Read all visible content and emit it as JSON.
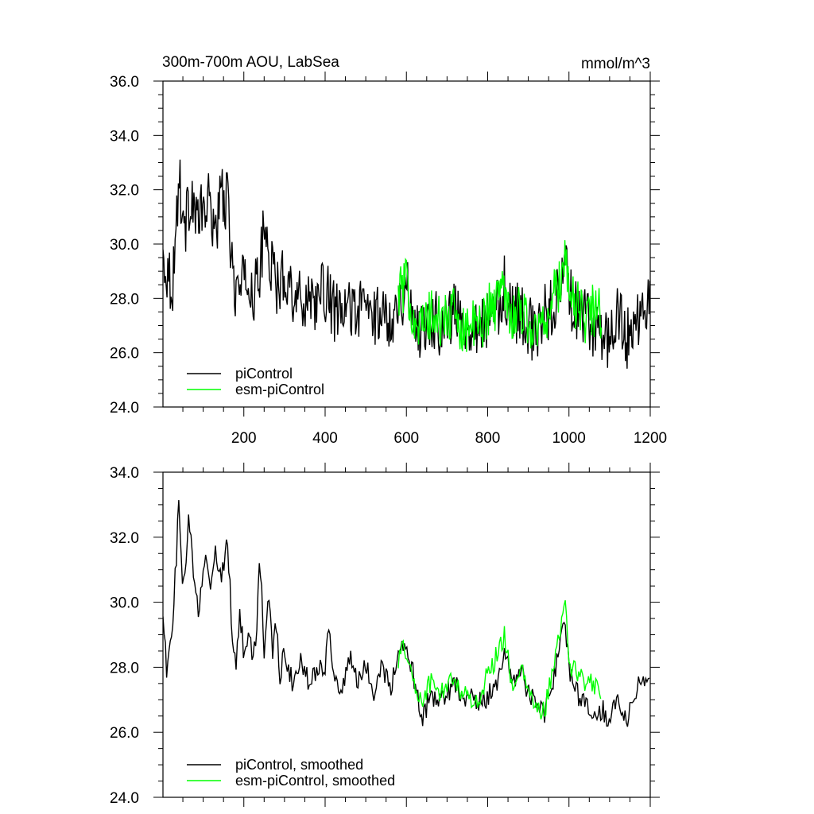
{
  "figure": {
    "title": "300m-700m AOU, LabSea",
    "units": "mmol/m^3"
  },
  "chart_data": [
    {
      "type": "line",
      "title": "300m-700m AOU, LabSea",
      "units": "mmol/m^3",
      "xlabel": "",
      "ylabel": "",
      "xlim": [
        1,
        1200
      ],
      "ylim": [
        24.0,
        36.0
      ],
      "x_ticks": [
        200,
        400,
        600,
        800,
        1000,
        1200
      ],
      "x_tick_labels": [
        "200",
        "400",
        "600",
        "800",
        "1000",
        "1200"
      ],
      "y_ticks": [
        24.0,
        26.0,
        28.0,
        30.0,
        32.0,
        34.0,
        36.0
      ],
      "y_tick_labels": [
        "24.0",
        "26.0",
        "28.0",
        "30.0",
        "32.0",
        "34.0",
        "36.0"
      ],
      "grid": false,
      "legend_position": "bottom-left",
      "series": [
        {
          "name": "piControl",
          "color": "#000000",
          "x": [
            1,
            25,
            40,
            55,
            70,
            85,
            100,
            115,
            130,
            145,
            160,
            175,
            190,
            205,
            220,
            235,
            250,
            265,
            280,
            300,
            320,
            340,
            360,
            380,
            400,
            420,
            440,
            460,
            480,
            500,
            520,
            540,
            560,
            580,
            600,
            620,
            640,
            660,
            680,
            700,
            720,
            740,
            760,
            780,
            800,
            820,
            840,
            860,
            880,
            900,
            920,
            940,
            960,
            980,
            990,
            1000,
            1020,
            1040,
            1060,
            1080,
            1100,
            1120,
            1140,
            1160,
            1180,
            1200
          ],
          "y": [
            29.5,
            28.5,
            32.5,
            30.5,
            32.0,
            30.8,
            31.2,
            31.5,
            30.5,
            31.8,
            31.5,
            28.5,
            28.2,
            28.8,
            28.2,
            28.5,
            30.5,
            29.5,
            28.3,
            29.0,
            28.3,
            27.8,
            28.2,
            27.9,
            28.3,
            27.6,
            27.2,
            27.8,
            27.5,
            27.8,
            27.3,
            27.5,
            27.3,
            27.8,
            28.4,
            27.2,
            26.8,
            27.4,
            27.0,
            27.3,
            27.5,
            27.0,
            27.2,
            27.0,
            27.2,
            27.4,
            28.5,
            27.3,
            27.6,
            27.0,
            26.6,
            27.4,
            27.8,
            28.3,
            29.5,
            28.2,
            27.4,
            27.2,
            26.9,
            26.8,
            26.5,
            27.5,
            26.4,
            27.2,
            27.4,
            28.0
          ]
        },
        {
          "name": "esm-piControl",
          "color": "#00ff00",
          "x": [
            580,
            600,
            620,
            640,
            660,
            680,
            700,
            720,
            740,
            760,
            780,
            800,
            820,
            840,
            860,
            880,
            900,
            920,
            940,
            960,
            980,
            990,
            1000,
            1020,
            1040,
            1060,
            1080
          ],
          "y": [
            28.2,
            28.5,
            27.3,
            26.9,
            27.4,
            27.1,
            27.3,
            27.4,
            26.9,
            27.0,
            26.9,
            27.6,
            27.8,
            28.6,
            27.3,
            27.7,
            27.1,
            26.7,
            27.2,
            28.0,
            28.6,
            29.8,
            28.2,
            27.7,
            27.3,
            27.6,
            27.3
          ]
        }
      ]
    },
    {
      "type": "line",
      "title": "",
      "xlabel": "",
      "ylabel": "",
      "xlim": [
        1,
        1200
      ],
      "ylim": [
        24.0,
        34.0
      ],
      "x_ticks": [
        200,
        400,
        600,
        800,
        1000,
        1200
      ],
      "x_tick_labels": [],
      "y_ticks": [
        24.0,
        26.0,
        28.0,
        30.0,
        32.0,
        34.0
      ],
      "y_tick_labels": [
        "24.0",
        "26.0",
        "28.0",
        "30.0",
        "32.0",
        "34.0"
      ],
      "grid": false,
      "legend_position": "bottom-left",
      "series": [
        {
          "name": "piControl, smoothed",
          "color": "#000000",
          "x": [
            1,
            10,
            25,
            40,
            50,
            55,
            65,
            70,
            80,
            90,
            100,
            110,
            120,
            130,
            140,
            150,
            160,
            170,
            180,
            190,
            200,
            210,
            220,
            230,
            240,
            250,
            260,
            270,
            280,
            290,
            300,
            320,
            340,
            360,
            380,
            400,
            410,
            420,
            440,
            460,
            480,
            500,
            520,
            540,
            560,
            580,
            600,
            620,
            640,
            660,
            680,
            700,
            720,
            740,
            760,
            780,
            800,
            820,
            840,
            860,
            880,
            900,
            920,
            940,
            960,
            980,
            990,
            1000,
            1020,
            1040,
            1060,
            1080,
            1100,
            1120,
            1140,
            1160,
            1180,
            1200
          ],
          "y": [
            29.9,
            27.8,
            29.2,
            33.0,
            30.2,
            30.8,
            32.7,
            31.8,
            30.2,
            29.6,
            31.0,
            31.4,
            30.5,
            31.8,
            30.6,
            31.2,
            32.1,
            29.3,
            28.0,
            29.6,
            28.5,
            29.0,
            28.4,
            28.8,
            31.4,
            28.6,
            30.5,
            28.4,
            29.4,
            27.6,
            28.6,
            27.5,
            28.1,
            27.6,
            28.0,
            28.1,
            29.3,
            27.8,
            27.2,
            28.3,
            27.5,
            28.0,
            27.3,
            28.1,
            27.4,
            28.2,
            28.8,
            27.6,
            26.4,
            27.2,
            26.9,
            27.2,
            27.6,
            27.0,
            27.3,
            26.9,
            27.1,
            27.4,
            28.5,
            27.6,
            28.0,
            27.2,
            27.0,
            26.6,
            27.6,
            28.7,
            29.4,
            28.0,
            27.2,
            26.8,
            26.7,
            26.7,
            26.4,
            27.1,
            26.3,
            27.2,
            27.5,
            28.0
          ]
        },
        {
          "name": "esm-piControl, smoothed",
          "color": "#00ff00",
          "x": [
            580,
            600,
            620,
            640,
            660,
            680,
            700,
            720,
            740,
            760,
            780,
            800,
            820,
            840,
            860,
            880,
            900,
            920,
            940,
            960,
            980,
            990,
            1000,
            1020,
            1040,
            1060,
            1080
          ],
          "y": [
            28.3,
            28.6,
            27.3,
            27.0,
            27.6,
            27.1,
            27.5,
            27.6,
            27.2,
            27.0,
            27.0,
            27.8,
            28.3,
            29.0,
            27.5,
            27.9,
            27.3,
            26.7,
            26.6,
            28.0,
            29.0,
            30.2,
            28.1,
            27.9,
            27.4,
            27.5,
            27.2
          ]
        }
      ]
    }
  ]
}
